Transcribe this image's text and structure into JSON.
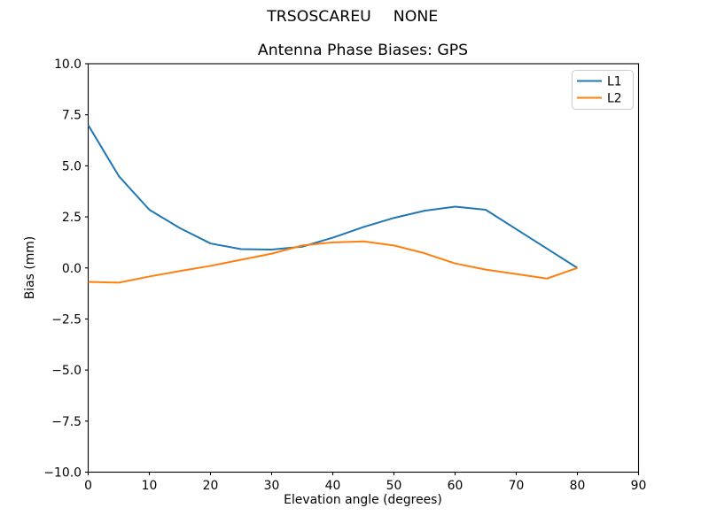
{
  "chart_data": {
    "type": "line",
    "suptitle_left": "TRSOSCAREU",
    "suptitle_right": "NONE",
    "title": "Antenna Phase Biases: GPS",
    "xlabel": "Elevation angle (degrees)",
    "ylabel": "Bias (mm)",
    "grid": false,
    "background": "#ffffff",
    "axes": {
      "x_min": 0,
      "x_max": 90,
      "y_min": -10,
      "y_max": 10,
      "x_ticks": [
        {
          "value": 0,
          "label": "0"
        },
        {
          "value": 10,
          "label": "10"
        },
        {
          "value": 20,
          "label": "20"
        },
        {
          "value": 30,
          "label": "30"
        },
        {
          "value": 40,
          "label": "40"
        },
        {
          "value": 50,
          "label": "50"
        },
        {
          "value": 60,
          "label": "60"
        },
        {
          "value": 70,
          "label": "70"
        },
        {
          "value": 80,
          "label": "80"
        },
        {
          "value": 90,
          "label": "90"
        }
      ],
      "y_ticks": [
        {
          "value": 10,
          "label": "10.0"
        },
        {
          "value": 7.5,
          "label": "7.5"
        },
        {
          "value": 5,
          "label": "5.0"
        },
        {
          "value": 2.5,
          "label": "2.5"
        },
        {
          "value": 0,
          "label": "0.0"
        },
        {
          "value": -2.5,
          "label": "−2.5"
        },
        {
          "value": -5,
          "label": "−5.0"
        },
        {
          "value": -7.5,
          "label": "−7.5"
        },
        {
          "value": -10,
          "label": "−10.0"
        }
      ]
    },
    "legend": {
      "position": "upper right"
    },
    "series": [
      {
        "name": "L1",
        "color": "#1f77b4",
        "x": [
          0,
          5,
          10,
          15,
          20,
          25,
          30,
          35,
          40,
          45,
          50,
          55,
          60,
          65,
          70,
          75,
          80
        ],
        "y": [
          7.0,
          4.5,
          2.85,
          1.95,
          1.2,
          0.92,
          0.9,
          1.04,
          1.48,
          2.0,
          2.45,
          2.8,
          3.0,
          2.85,
          1.9,
          0.95,
          0.0
        ]
      },
      {
        "name": "L2",
        "color": "#ff7f0e",
        "x": [
          0,
          5,
          10,
          15,
          20,
          25,
          30,
          35,
          40,
          45,
          50,
          55,
          60,
          65,
          70,
          75,
          80
        ],
        "y": [
          -0.68,
          -0.72,
          -0.42,
          -0.15,
          0.1,
          0.4,
          0.7,
          1.1,
          1.25,
          1.3,
          1.1,
          0.72,
          0.22,
          -0.08,
          -0.3,
          -0.52,
          0.0
        ]
      }
    ]
  }
}
